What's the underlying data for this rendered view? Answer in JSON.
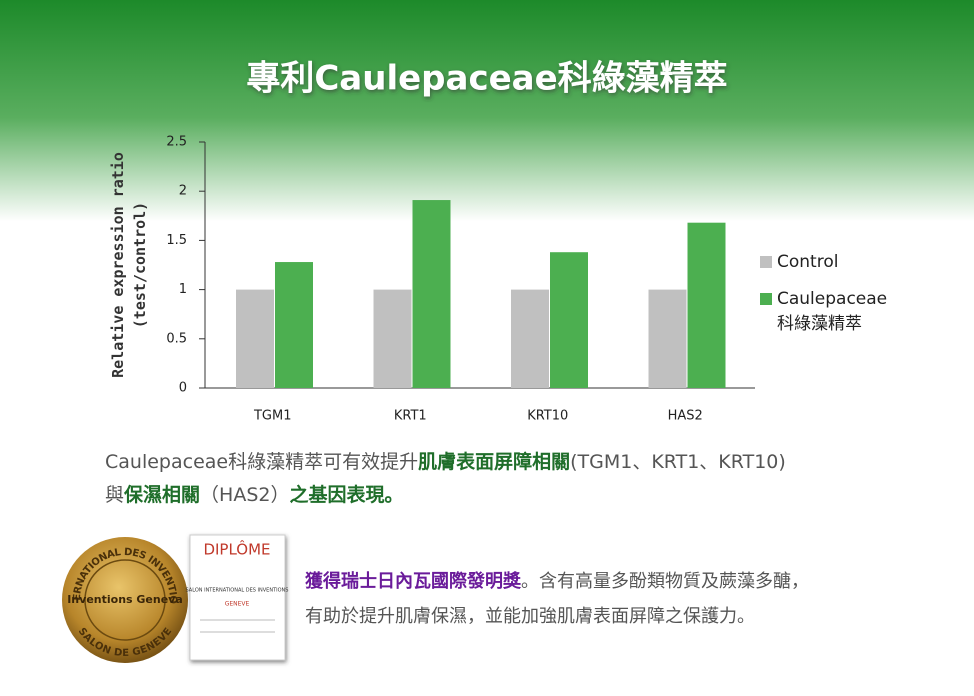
{
  "title": "專利Caulepaceae科綠藻精萃",
  "chart_data": {
    "type": "bar",
    "categories": [
      "TGM1",
      "KRT1",
      "KRT10",
      "HAS2"
    ],
    "series": [
      {
        "name": "Control",
        "color": "#c0c0c0",
        "values": [
          1,
          1,
          1,
          1
        ]
      },
      {
        "name": "Caulepaceae\n科綠藻精萃",
        "color": "#4caf50",
        "values": [
          1.28,
          1.91,
          1.38,
          1.68
        ]
      }
    ],
    "ylim": [
      0,
      2.5
    ],
    "yticks": [
      0,
      0.5,
      1,
      1.5,
      2,
      2.5
    ],
    "y_label": "Relative expression ratio\n(test/control)",
    "legend": "right"
  },
  "description": [
    "Caulepaceae科綠藻精萃可有效提升",
    "肌膚表面屏障相關",
    "(TGM1、KRT1、KRT10)",
    "與",
    "保濕相關",
    "（HAS2）",
    "之基因表現。"
  ],
  "award": {
    "medal_ring": "INTERNATIONAL DES INVENTIONS",
    "medal_ring_bottom": "SALON DE GENEVE",
    "medal_logo": "Inventions Geneva",
    "diploma_title": "DIPLÔME",
    "diploma_text": "SALON INTERNATIONAL DES INVENTIONS",
    "diploma_city": "GENEVE",
    "highlight": "獲得瑞士日內瓦國際發明獎",
    "text_line1": "。含有高量多酚類物質及蕨藻多醣，",
    "text_line2": "有助於提升肌膚保濕，並能加強肌膚表面屏障之保護力。"
  }
}
